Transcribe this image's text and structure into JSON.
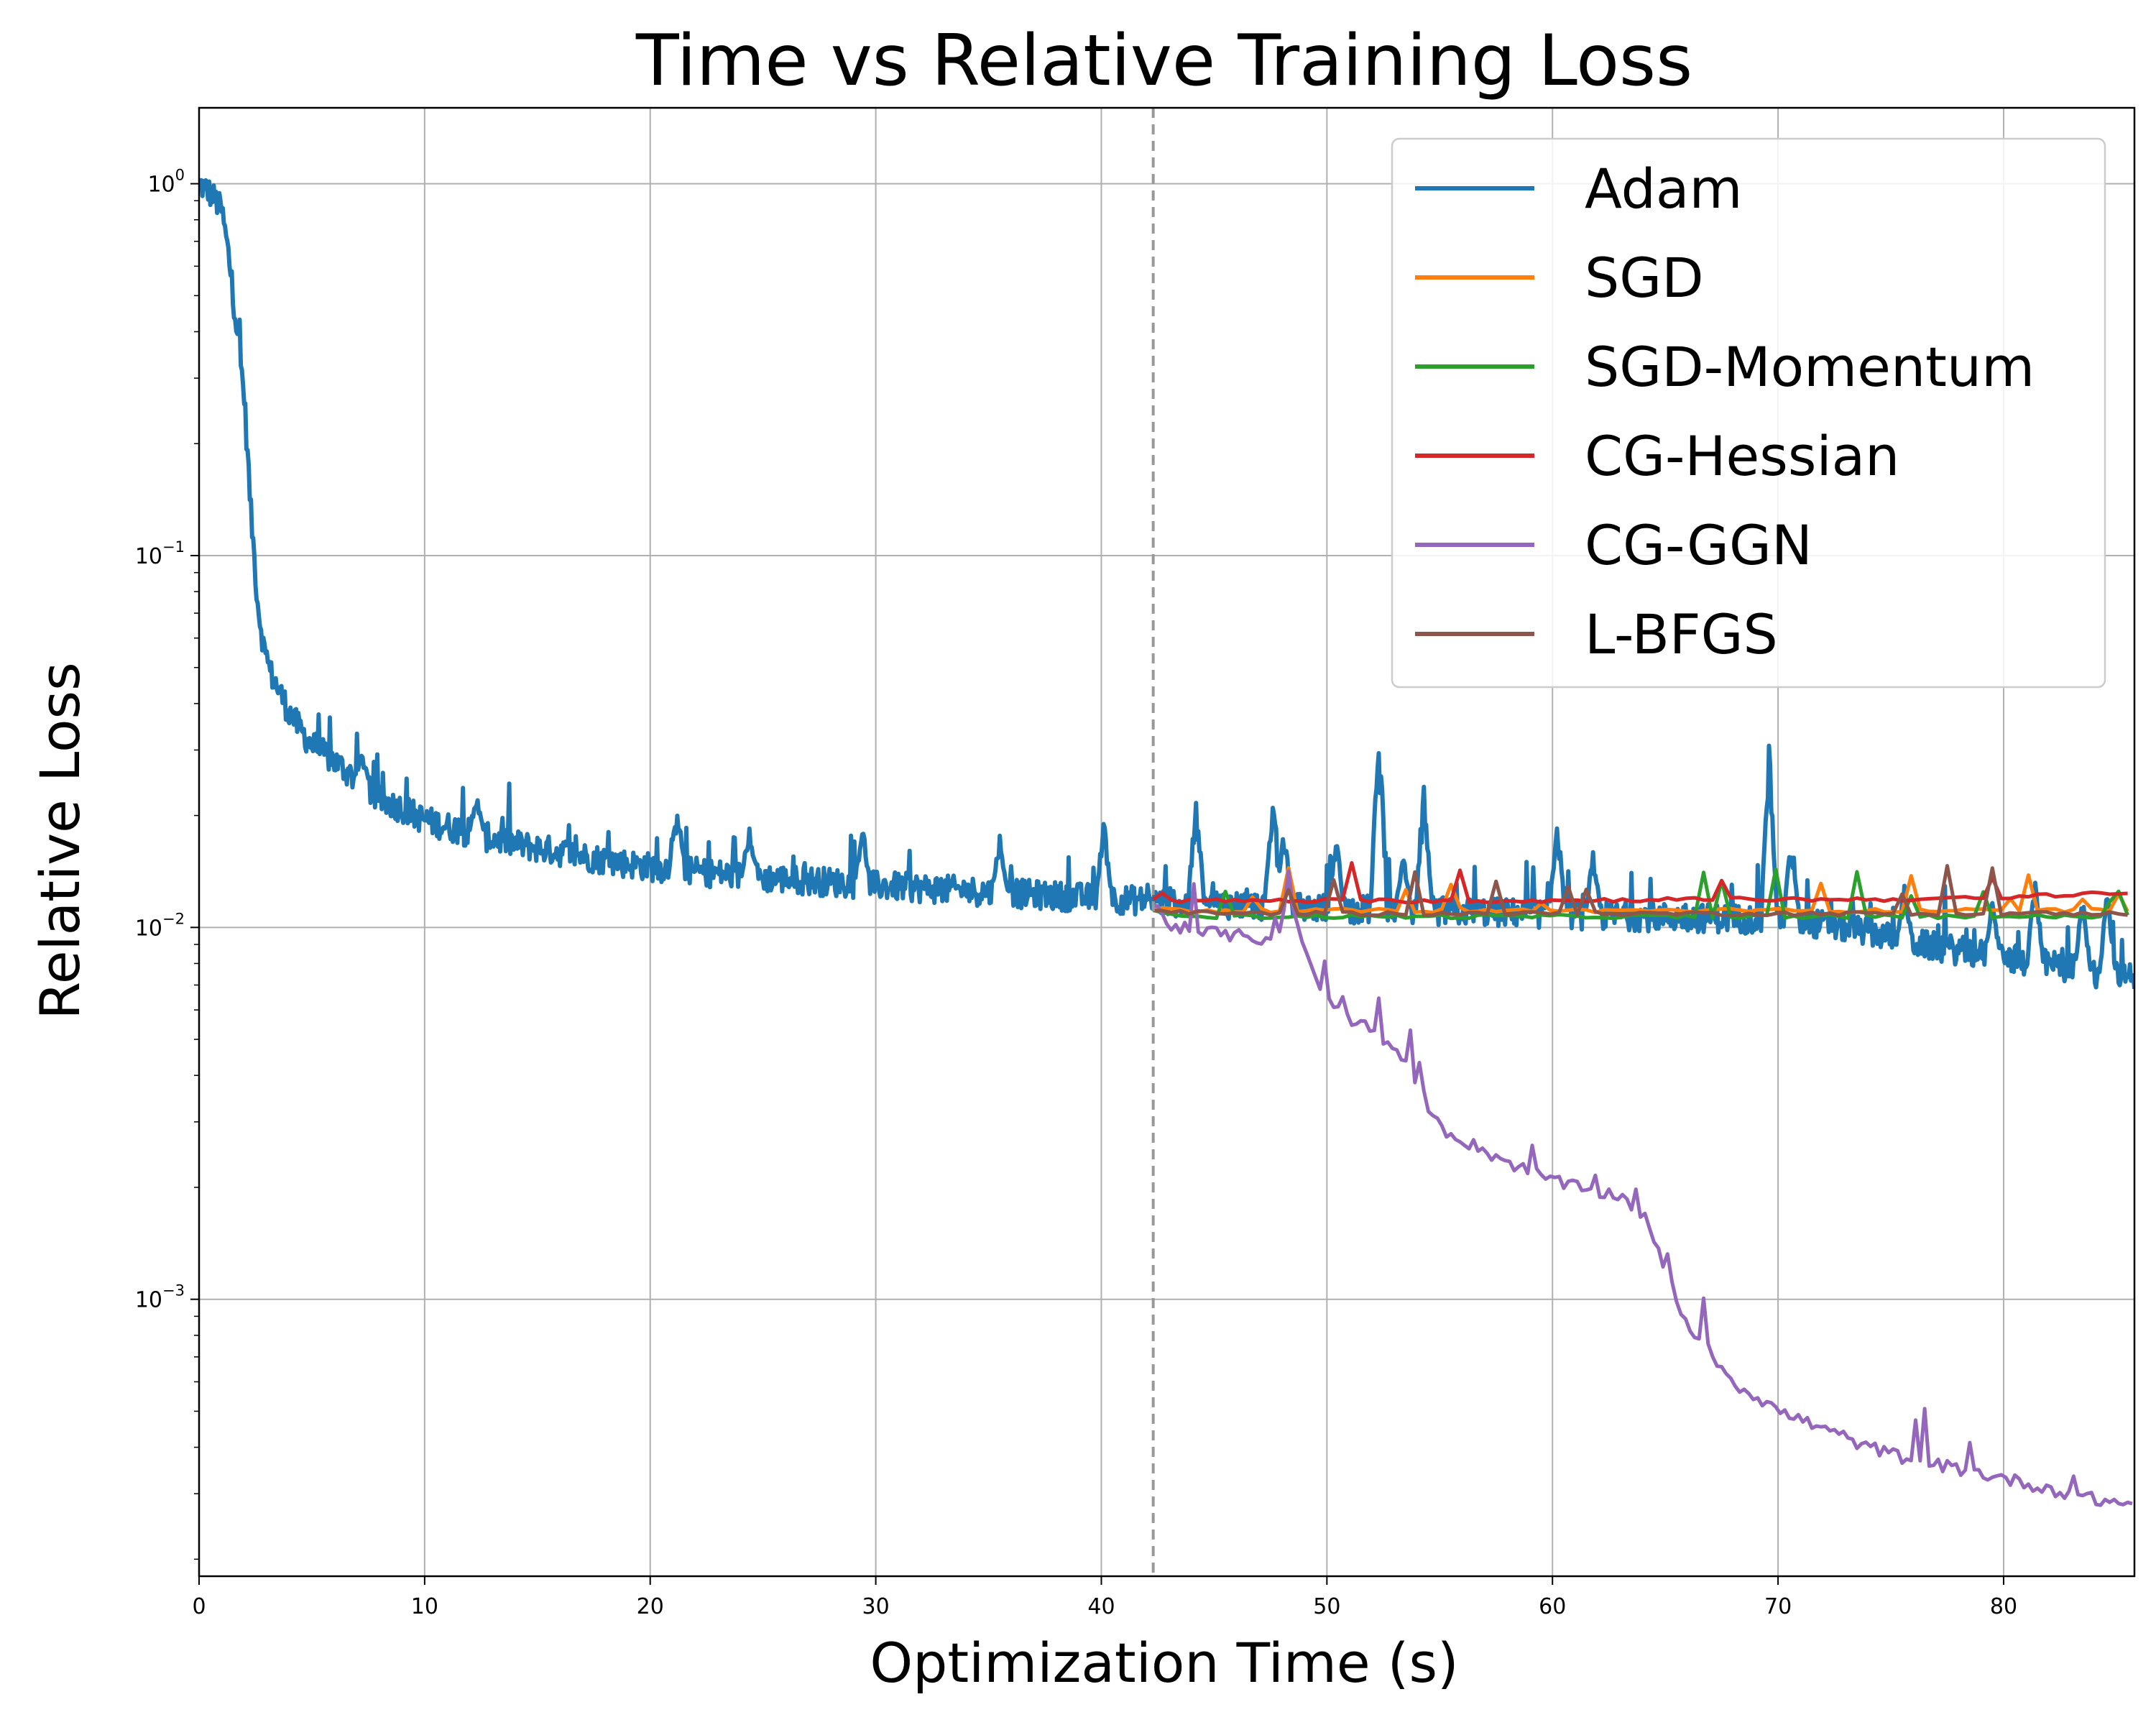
{
  "chart_data": {
    "type": "line",
    "title": "Time vs Relative Training Loss",
    "xlabel": "Optimization Time (s)",
    "ylabel": "Relative Loss",
    "xlim": [
      0,
      85.8
    ],
    "ylim": [
      0.00018,
      1.6
    ],
    "yscale": "log",
    "grid": true,
    "legend_position": "top-right",
    "x_ticks": [
      0,
      10,
      20,
      30,
      40,
      50,
      60,
      70,
      80
    ],
    "x_tick_labels": [
      "0",
      "10",
      "20",
      "30",
      "40",
      "50",
      "60",
      "70",
      "80"
    ],
    "y_ticks": [
      1,
      0.1,
      0.01,
      0.001
    ],
    "y_tick_labels": [
      {
        "base": "10",
        "exp": "0"
      },
      {
        "base": "10",
        "exp": "−1"
      },
      {
        "base": "10",
        "exp": "−2"
      },
      {
        "base": "10",
        "exp": "−3"
      }
    ],
    "switch_time": 42.3,
    "series": [
      {
        "name": "Adam",
        "color": "#1f77b4",
        "x": [
          0,
          0.3,
          0.6,
          1.0,
          1.3,
          1.6,
          2.0,
          2.3,
          2.6,
          2.9,
          3.2,
          3.5,
          4.0,
          4.5,
          5.0,
          6.0,
          7.0,
          8.0,
          9.0,
          10.0,
          12.0,
          14.0,
          16.0,
          18.0,
          20.0,
          22.0,
          24.0,
          26.0,
          28.0,
          30.0,
          32.0,
          34.0,
          36.0,
          38.0,
          40.0,
          42.3,
          45.0,
          48.0,
          50.0,
          52.0,
          55.0,
          58.0,
          60.0,
          62.0,
          65.0,
          68.0,
          70.0,
          72.0,
          74.0,
          75.0,
          76.0,
          78.0,
          80.0,
          82.0,
          84.0,
          85.8
        ],
        "y": [
          1.0,
          0.97,
          0.93,
          0.85,
          0.65,
          0.45,
          0.27,
          0.13,
          0.075,
          0.055,
          0.048,
          0.044,
          0.038,
          0.034,
          0.031,
          0.028,
          0.025,
          0.022,
          0.021,
          0.0195,
          0.018,
          0.0168,
          0.016,
          0.0152,
          0.0146,
          0.0142,
          0.0138,
          0.0135,
          0.0133,
          0.013,
          0.0128,
          0.0126,
          0.0124,
          0.0122,
          0.012,
          0.0118,
          0.0116,
          0.0114,
          0.0113,
          0.0112,
          0.0111,
          0.011,
          0.0109,
          0.0108,
          0.0107,
          0.0106,
          0.0105,
          0.0102,
          0.0098,
          0.0094,
          0.0091,
          0.0087,
          0.0083,
          0.008,
          0.0076,
          0.0073
        ],
        "spikes": [
          [
            44.2,
            0.022
          ],
          [
            47.6,
            0.024
          ],
          [
            48.1,
            0.019
          ],
          [
            50.4,
            0.018
          ],
          [
            52.3,
            0.033
          ],
          [
            53.4,
            0.016
          ],
          [
            54.3,
            0.024
          ],
          [
            60.2,
            0.02
          ],
          [
            61.8,
            0.016
          ],
          [
            69.6,
            0.031
          ],
          [
            70.6,
            0.018
          ],
          [
            75.6,
            0.013
          ],
          [
            79.5,
            0.012
          ],
          [
            81.4,
            0.014
          ],
          [
            83.5,
            0.012
          ],
          [
            84.6,
            0.013
          ],
          [
            7.2,
            0.03
          ],
          [
            12.3,
            0.023
          ],
          [
            21.2,
            0.021
          ],
          [
            24.4,
            0.019
          ],
          [
            29.4,
            0.019
          ],
          [
            35.5,
            0.018
          ],
          [
            40.1,
            0.02
          ]
        ]
      },
      {
        "name": "SGD",
        "color": "#ff7f0e",
        "x": [
          42.3,
          45.0,
          50.0,
          55.0,
          60.0,
          65.0,
          70.0,
          75.0,
          80.0,
          85.8
        ],
        "y": [
          0.0112,
          0.0111,
          0.0111,
          0.0111,
          0.0111,
          0.0111,
          0.0111,
          0.0111,
          0.0111,
          0.0111
        ]
      },
      {
        "name": "SGD-Momentum",
        "color": "#2ca02c",
        "x": [
          42.3,
          45.0,
          50.0,
          55.0,
          60.0,
          65.0,
          70.0,
          75.0,
          80.0,
          85.8
        ],
        "y": [
          0.011,
          0.0107,
          0.0107,
          0.0107,
          0.0107,
          0.0107,
          0.0107,
          0.0107,
          0.0107,
          0.0107
        ]
      },
      {
        "name": "CG-Hessian",
        "color": "#d62728",
        "x": [
          42.3,
          45.0,
          50.0,
          55.0,
          60.0,
          65.0,
          70.0,
          75.0,
          80.0,
          82.0,
          84.0,
          85.8
        ],
        "y": [
          0.0118,
          0.0118,
          0.0118,
          0.0118,
          0.0118,
          0.0119,
          0.0119,
          0.0119,
          0.012,
          0.0122,
          0.0124,
          0.0123
        ]
      },
      {
        "name": "CG-GGN",
        "color": "#9467bd",
        "x": [
          42.3,
          43.0,
          44.0,
          46.0,
          47.5,
          48.0,
          48.3,
          48.6,
          49.0,
          50.0,
          51.0,
          52.0,
          53.0,
          54.0,
          55.0,
          57.0,
          59.0,
          61.0,
          63.0,
          64.0,
          65.0,
          66.0,
          67.0,
          68.0,
          69.0,
          70.0,
          72.0,
          74.0,
          76.0,
          78.0,
          80.0,
          82.0,
          84.0,
          85.8
        ],
        "y": [
          0.0115,
          0.0102,
          0.0098,
          0.0095,
          0.0093,
          0.0095,
          0.014,
          0.0105,
          0.0085,
          0.0064,
          0.0057,
          0.0053,
          0.0047,
          0.0038,
          0.0029,
          0.0025,
          0.0022,
          0.002,
          0.0019,
          0.0017,
          0.0012,
          0.00085,
          0.00072,
          0.0006,
          0.00055,
          0.0005,
          0.00045,
          0.0004,
          0.00037,
          0.00035,
          0.00033,
          0.00031,
          0.00029,
          0.00028
        ]
      },
      {
        "name": "L-BFGS",
        "color": "#8c564b",
        "x": [
          42.3,
          45.0,
          50.0,
          55.0,
          60.0,
          65.0,
          70.0,
          75.0,
          80.0,
          85.8
        ],
        "y": [
          0.0111,
          0.0109,
          0.0109,
          0.0109,
          0.0109,
          0.0109,
          0.0109,
          0.0109,
          0.0109,
          0.0109
        ]
      }
    ]
  }
}
